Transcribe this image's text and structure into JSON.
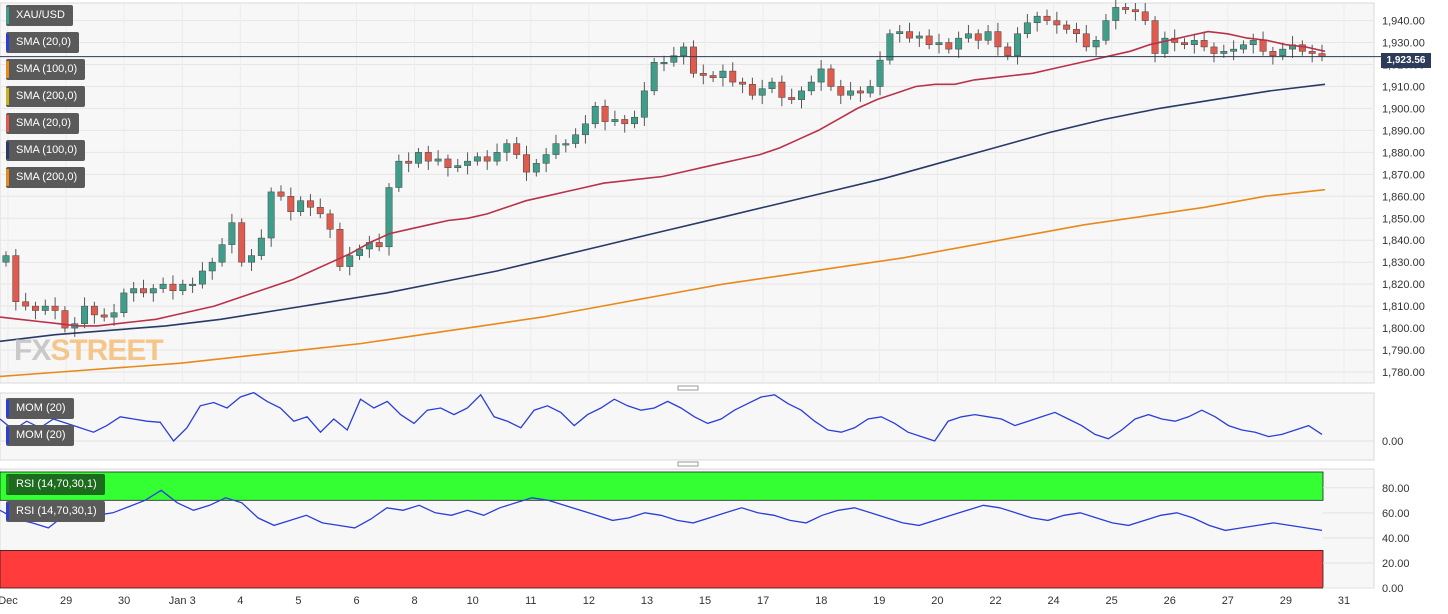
{
  "symbol": "XAU/USD",
  "current_price": "1,923.56",
  "colors": {
    "up": "#3f9e8a",
    "down": "#e05a4e",
    "sma20": "#b8324a",
    "sma100": "#283a66",
    "sma200": "#e88a1a",
    "mom": "#2a3fd6",
    "rsi": "#2a3fd6",
    "rsi_over": "#33ff33",
    "rsi_under": "#ff3b3b"
  },
  "indicator_labels": [
    {
      "text": "SMA (20,0)",
      "color": "#2a3fd6"
    },
    {
      "text": "SMA (100,0)",
      "color": "#e88a1a"
    },
    {
      "text": "SMA (200,0)",
      "color": "#c9b21e"
    },
    {
      "text": "SMA (20,0)",
      "color": "#e05a4e"
    },
    {
      "text": "SMA (100,0)",
      "color": "#283a66"
    },
    {
      "text": "SMA (200,0)",
      "color": "#e88a1a"
    }
  ],
  "mom_labels": [
    "MOM (20)",
    "MOM (20)"
  ],
  "rsi_labels": [
    "RSI (14,70,30,1)",
    "RSI (14,70,30,1)"
  ],
  "logo": {
    "fx": "FX",
    "street": "STREET"
  },
  "chart_data": [
    {
      "type": "candlestick",
      "title": "XAU/USD",
      "x_labels": [
        "Dec",
        "29",
        "30",
        "Jan 3",
        "4",
        "5",
        "6",
        "8",
        "10",
        "11",
        "12",
        "13",
        "15",
        "17",
        "18",
        "19",
        "20",
        "22",
        "24",
        "25",
        "26",
        "27",
        "29",
        "31"
      ],
      "ylim": [
        1775,
        1948
      ],
      "y_ticks": [
        1780,
        1790,
        1800,
        1810,
        1820,
        1830,
        1840,
        1850,
        1860,
        1870,
        1880,
        1890,
        1900,
        1910,
        1920,
        1930,
        1940
      ],
      "current_price": 1923.56,
      "closes": [
        1833,
        1812,
        1810,
        1808,
        1810,
        1808,
        1800,
        1802,
        1810,
        1806,
        1805,
        1807,
        1816,
        1818,
        1816,
        1818,
        1820,
        1817,
        1820,
        1820,
        1826,
        1830,
        1838,
        1848,
        1830,
        1833,
        1841,
        1862,
        1860,
        1853,
        1858,
        1855,
        1852,
        1845,
        1828,
        1833,
        1836,
        1839,
        1837,
        1864,
        1876,
        1875,
        1880,
        1876,
        1877,
        1873,
        1874,
        1876,
        1878,
        1876,
        1880,
        1884,
        1879,
        1871,
        1875,
        1879,
        1884,
        1884,
        1888,
        1893,
        1901,
        1894,
        1895,
        1893,
        1896,
        1908,
        1921,
        1921,
        1924,
        1928,
        1916,
        1915,
        1914,
        1917,
        1912,
        1911,
        1906,
        1909,
        1912,
        1905,
        1904,
        1908,
        1912,
        1918,
        1910,
        1906,
        1908,
        1907,
        1910,
        1922,
        1934,
        1935,
        1932,
        1933,
        1929,
        1930,
        1927,
        1932,
        1934,
        1931,
        1935,
        1928,
        1924,
        1934,
        1939,
        1942,
        1940,
        1938,
        1936,
        1934,
        1928,
        1931,
        1940,
        1946,
        1945,
        1944,
        1940,
        1925,
        1932,
        1930,
        1929,
        1931,
        1928,
        1925,
        1926,
        1927,
        1929,
        1931,
        1926,
        1924,
        1927,
        1929,
        1926,
        1925,
        1923.56
      ],
      "sma20": [
        1805,
        1804,
        1803,
        1802,
        1801,
        1801,
        1802,
        1803,
        1804,
        1806,
        1808,
        1810,
        1813,
        1816,
        1819,
        1822,
        1826,
        1830,
        1834,
        1839,
        1843,
        1845,
        1847,
        1849,
        1850,
        1852,
        1855,
        1858,
        1860,
        1862,
        1864,
        1866,
        1867,
        1868,
        1869,
        1871,
        1873,
        1875,
        1877,
        1879,
        1882,
        1886,
        1890,
        1895,
        1900,
        1904,
        1907,
        1910,
        1911,
        1911,
        1913,
        1914,
        1915,
        1916,
        1918,
        1920,
        1922,
        1924,
        1926,
        1929,
        1931,
        1933,
        1935,
        1934,
        1932,
        1931,
        1929,
        1928,
        1926
      ],
      "sma100": [
        1794,
        1797,
        1799,
        1801,
        1804,
        1808,
        1812,
        1816,
        1821,
        1826,
        1832,
        1838,
        1844,
        1850,
        1856,
        1862,
        1868,
        1875,
        1882,
        1889,
        1895,
        1900,
        1904,
        1908,
        1911
      ],
      "sma200": [
        1778,
        1780,
        1782,
        1784,
        1787,
        1790,
        1793,
        1797,
        1801,
        1805,
        1810,
        1815,
        1820,
        1824,
        1828,
        1832,
        1837,
        1842,
        1847,
        1851,
        1855,
        1860,
        1863
      ]
    },
    {
      "type": "line",
      "title": "MOM (20)",
      "y_ticks": [
        "0.00"
      ],
      "values": [
        20,
        10,
        18,
        12,
        20,
        16,
        12,
        8,
        14,
        22,
        20,
        18,
        17,
        0,
        12,
        32,
        35,
        30,
        40,
        44,
        36,
        30,
        18,
        22,
        8,
        20,
        10,
        38,
        30,
        36,
        24,
        16,
        28,
        30,
        24,
        30,
        42,
        22,
        18,
        12,
        28,
        32,
        26,
        14,
        24,
        30,
        38,
        32,
        28,
        30,
        36,
        30,
        22,
        16,
        20,
        28,
        34,
        40,
        42,
        34,
        28,
        18,
        10,
        8,
        12,
        20,
        22,
        16,
        8,
        4,
        0,
        18,
        22,
        24,
        22,
        20,
        14,
        18,
        22,
        26,
        20,
        14,
        6,
        2,
        10,
        20,
        24,
        20,
        18,
        22,
        28,
        22,
        14,
        10,
        8,
        4,
        6,
        10,
        14,
        6
      ]
    },
    {
      "type": "line",
      "title": "RSI (14,70,30,1)",
      "y_ticks": [
        "0.00",
        "20.00",
        "40.00",
        "60.00",
        "80.00"
      ],
      "ylim": [
        0,
        95
      ],
      "overbought": 70,
      "oversold": 30,
      "values": [
        62,
        55,
        52,
        48,
        58,
        62,
        58,
        60,
        65,
        70,
        78,
        68,
        62,
        66,
        72,
        68,
        56,
        50,
        54,
        58,
        52,
        50,
        48,
        55,
        64,
        62,
        66,
        60,
        58,
        62,
        58,
        64,
        68,
        72,
        70,
        66,
        62,
        58,
        54,
        56,
        60,
        58,
        54,
        52,
        56,
        60,
        64,
        60,
        58,
        54,
        52,
        58,
        62,
        64,
        60,
        56,
        52,
        50,
        54,
        58,
        62,
        66,
        64,
        60,
        56,
        54,
        58,
        60,
        56,
        52,
        50,
        54,
        58,
        60,
        56,
        50,
        46,
        48,
        50,
        52,
        50,
        48,
        46
      ]
    }
  ]
}
